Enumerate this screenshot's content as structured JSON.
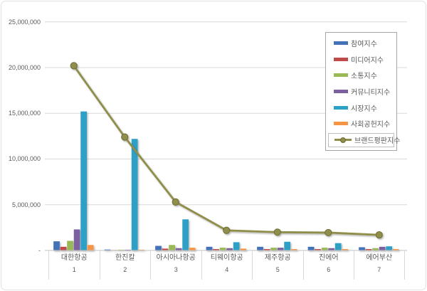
{
  "chart_data": {
    "type": "bar",
    "subtype": "clustered-bars-with-line-overlay",
    "title": "",
    "xlabel": "",
    "ylabel": "",
    "categories": [
      "대한항공",
      "한진칼",
      "아시아나항공",
      "티웨이항공",
      "제주항공",
      "진에어",
      "에어부산"
    ],
    "category_numbers": [
      "1",
      "2",
      "3",
      "4",
      "5",
      "6",
      "7"
    ],
    "series": [
      {
        "name": "참여지수",
        "type": "bar",
        "color": "#4273b9",
        "values": [
          1000000,
          100000,
          500000,
          400000,
          400000,
          400000,
          350000
        ]
      },
      {
        "name": "미디어지수",
        "type": "bar",
        "color": "#be4b48",
        "values": [
          400000,
          50000,
          200000,
          150000,
          150000,
          150000,
          150000
        ]
      },
      {
        "name": "소통지수",
        "type": "bar",
        "color": "#98b954",
        "values": [
          1050000,
          80000,
          600000,
          300000,
          300000,
          300000,
          250000
        ]
      },
      {
        "name": "커뮤니티지수",
        "type": "bar",
        "color": "#7d60a0",
        "values": [
          2300000,
          80000,
          250000,
          250000,
          300000,
          250000,
          400000
        ]
      },
      {
        "name": "시장지수",
        "type": "bar",
        "color": "#2da0c6",
        "values": [
          15200000,
          12200000,
          3400000,
          900000,
          950000,
          800000,
          450000
        ]
      },
      {
        "name": "사회공헌지수",
        "type": "bar",
        "color": "#f79545",
        "values": [
          600000,
          80000,
          300000,
          200000,
          150000,
          150000,
          150000
        ]
      },
      {
        "name": "브랜드평판지수",
        "type": "line",
        "color": "#8f8f4b",
        "marker_edge": "#6d6d33",
        "values": [
          20200000,
          12400000,
          5300000,
          2200000,
          2000000,
          1950000,
          1700000
        ]
      }
    ],
    "y_axis": {
      "min": 0,
      "max": 25000000,
      "tick_step": 5000000,
      "ticks": [
        0,
        5000000,
        10000000,
        15000000,
        20000000,
        25000000
      ],
      "tick_labels": [
        "-",
        "5,000,000",
        "10,000,000",
        "15,000,000",
        "20,000,000",
        "25,000,000"
      ]
    },
    "grid": true,
    "legend": {
      "position": "right",
      "selected_item": "브랜드평판지수"
    }
  },
  "colors": {
    "gridline": "#d9d9d9",
    "axis_line": "#c0c0c0",
    "axis_text": "#595959",
    "legend_border": "#a6a6a6",
    "selection_border": "#bfbfbf",
    "frame_border": "#e2e2e2"
  }
}
